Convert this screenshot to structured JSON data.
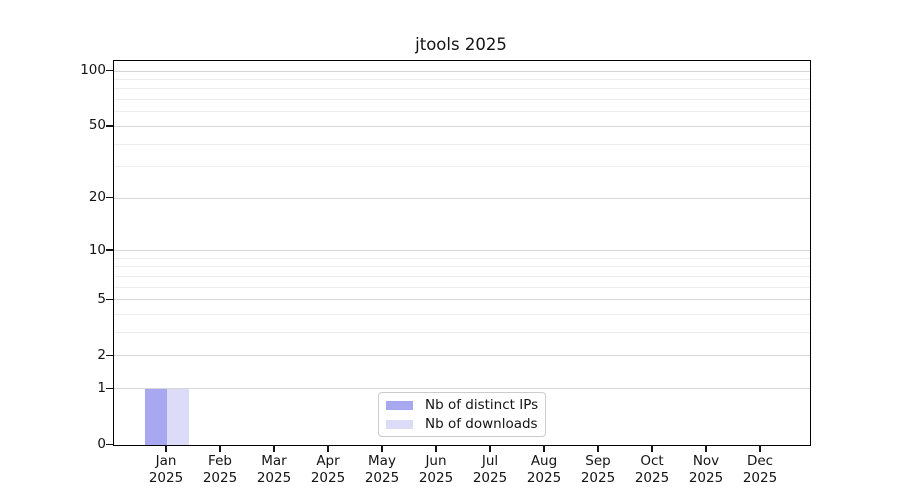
{
  "chart_data": {
    "type": "bar",
    "title": "jtools 2025",
    "xlabel": "",
    "ylabel": "",
    "yscale": "log1p",
    "ylim": [
      0,
      100
    ],
    "grid": "horizontal, major and minor gridlines",
    "legend_position": "bottom-center",
    "categories": [
      {
        "month": "Jan",
        "year": "2025"
      },
      {
        "month": "Feb",
        "year": "2025"
      },
      {
        "month": "Mar",
        "year": "2025"
      },
      {
        "month": "Apr",
        "year": "2025"
      },
      {
        "month": "May",
        "year": "2025"
      },
      {
        "month": "Jun",
        "year": "2025"
      },
      {
        "month": "Jul",
        "year": "2025"
      },
      {
        "month": "Aug",
        "year": "2025"
      },
      {
        "month": "Sep",
        "year": "2025"
      },
      {
        "month": "Oct",
        "year": "2025"
      },
      {
        "month": "Nov",
        "year": "2025"
      },
      {
        "month": "Dec",
        "year": "2025"
      }
    ],
    "series": [
      {
        "name": "Nb of distinct IPs",
        "color": "#a8a8f0",
        "values": [
          1,
          0,
          0,
          0,
          0,
          0,
          0,
          0,
          0,
          0,
          0,
          0
        ]
      },
      {
        "name": "Nb of downloads",
        "color": "#dcdcf8",
        "values": [
          1,
          0,
          0,
          0,
          0,
          0,
          0,
          0,
          0,
          0,
          0,
          0
        ]
      }
    ],
    "y_major_ticks": [
      0,
      1,
      2,
      5,
      10,
      20,
      50,
      100
    ],
    "y_minor_ticks": [
      3,
      4,
      6,
      7,
      8,
      9,
      30,
      40,
      60,
      70,
      80,
      90
    ]
  }
}
